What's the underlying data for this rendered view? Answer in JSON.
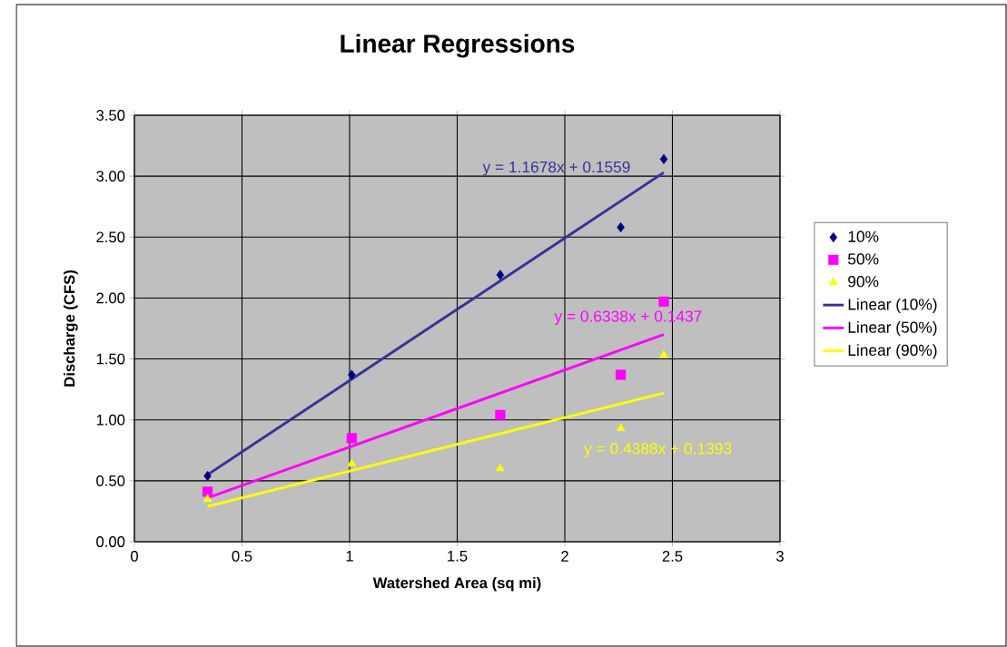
{
  "chart_data": {
    "type": "scatter",
    "title": "Linear Regressions",
    "xlabel": "Watershed Area (sq mi)",
    "ylabel": "Discharge (CFS)",
    "series": [
      {
        "name": "10%",
        "color": "#000080",
        "marker": "diamond",
        "x": [
          0.34,
          1.01,
          1.7,
          2.26,
          2.46
        ],
        "values": [
          0.54,
          1.37,
          2.19,
          2.58,
          3.14
        ]
      },
      {
        "name": "50%",
        "color": "#ff00ff",
        "marker": "square",
        "x": [
          0.34,
          1.01,
          1.7,
          2.26,
          2.46
        ],
        "values": [
          0.41,
          0.85,
          1.04,
          1.37,
          1.97
        ]
      },
      {
        "name": "90%",
        "color": "#ffff00",
        "marker": "triangle",
        "x": [
          0.34,
          1.01,
          1.7,
          2.26,
          2.46
        ],
        "values": [
          0.35,
          0.64,
          0.6,
          0.93,
          1.53
        ]
      },
      {
        "name": "Linear (10%)",
        "type": "line",
        "color": "#333399",
        "marker": "none",
        "x": [
          0.34,
          2.46
        ],
        "values": [
          0.55,
          3.03
        ]
      },
      {
        "name": "Linear (50%)",
        "type": "line",
        "color": "#ff00ff",
        "marker": "none",
        "x": [
          0.34,
          2.46
        ],
        "values": [
          0.36,
          1.7
        ]
      },
      {
        "name": "Linear (90%)",
        "type": "line",
        "color": "#ffff00",
        "marker": "none",
        "x": [
          0.34,
          2.46
        ],
        "values": [
          0.29,
          1.22
        ]
      }
    ],
    "annotations": [
      "y = 1.1678x + 0.1559",
      "y = 0.6338x + 0.1437",
      "y = 0.4388x + 0.1393"
    ],
    "xlim": [
      0,
      3
    ],
    "xticks": [
      0,
      0.5,
      1,
      1.5,
      2,
      2.5,
      3
    ],
    "ylim": [
      0,
      3.5
    ],
    "yticks": [
      {
        "value": 0,
        "label": "0.00"
      },
      {
        "value": 0.5,
        "label": "0.50"
      },
      {
        "value": 1,
        "label": "1.00"
      },
      {
        "value": 1.5,
        "label": "1.50"
      },
      {
        "value": 2,
        "label": "2.00"
      },
      {
        "value": 2.5,
        "label": "2.50"
      },
      {
        "value": 3,
        "label": "3.00"
      },
      {
        "value": 3.5,
        "label": "3.50"
      }
    ],
    "grid": true,
    "legend": "right"
  }
}
